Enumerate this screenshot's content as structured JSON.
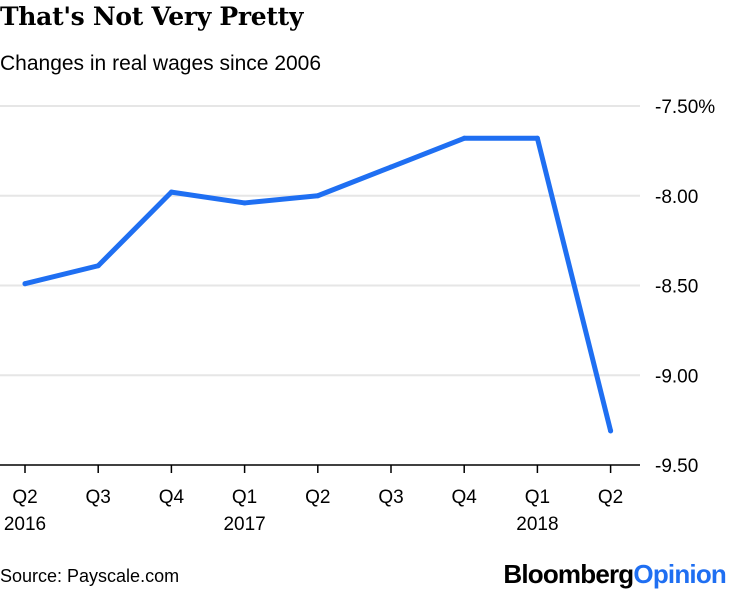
{
  "chart_data": {
    "type": "line",
    "title": "That's Not Very Pretty",
    "subtitle": "Changes in real wages since 2006",
    "categories": [
      "Q2",
      "Q3",
      "Q4",
      "Q1",
      "Q2",
      "Q3",
      "Q4",
      "Q1",
      "Q2"
    ],
    "year_labels": [
      "2016",
      "",
      "",
      "2017",
      "",
      "",
      "",
      "2018",
      ""
    ],
    "values": [
      -8.49,
      -8.39,
      -7.98,
      -8.04,
      -8.0,
      -7.84,
      -7.68,
      -7.68,
      -9.31
    ],
    "ylim": [
      -9.5,
      -7.5
    ],
    "yticks": [
      {
        "value": -7.5,
        "label": "-7.50%"
      },
      {
        "value": -8.0,
        "label": "-8.00"
      },
      {
        "value": -8.5,
        "label": "-8.50"
      },
      {
        "value": -9.0,
        "label": "-9.00"
      },
      {
        "value": -9.5,
        "label": "-9.50"
      }
    ],
    "xlabel": "",
    "ylabel": "",
    "grid": true,
    "line_color": "#1f6ff2",
    "source": "Source: Payscale.com"
  },
  "brand": {
    "part1": "Bloomberg",
    "part2": "Opinion"
  }
}
